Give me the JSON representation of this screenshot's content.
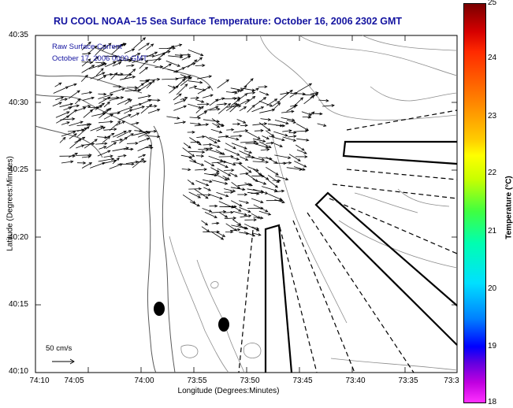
{
  "header": {
    "title": "RU COOL  NOAA–15  Sea Surface Temperature:  October 16, 2006 2302 GMT"
  },
  "legend": {
    "line1": "Raw Surface Current",
    "line2": "October 17, 2006 0000 GMT",
    "scale_label": "50 cm/s"
  },
  "axes": {
    "ylabel": "Latitude (Degrees:Minutes)",
    "xlabel": "Longitude (Degrees:Minutes)",
    "yticks": [
      "40:35",
      "40:30",
      "40:25",
      "40:20",
      "40:15",
      "40:10"
    ],
    "xticks": [
      "74:10",
      "74:05",
      "74:00",
      "73:55",
      "73:50",
      "73:45",
      "73:40",
      "73:35",
      "73:3"
    ]
  },
  "colorbar": {
    "label": "Temperature (°C)",
    "ticks": [
      "25",
      "24",
      "23",
      "22",
      "21",
      "20",
      "19",
      "18"
    ],
    "colors": [
      "#7a0000",
      "#ff0000",
      "#ffff00",
      "#00ff80",
      "#00e0ff",
      "#0000ff",
      "#ff30ff"
    ]
  },
  "chart_data": {
    "type": "map",
    "title": "RU COOL  NOAA–15  Sea Surface Temperature:  October 16, 2006 2302 GMT",
    "xlabel": "Longitude (Degrees:Minutes)",
    "ylabel": "Latitude (Degrees:Minutes)",
    "xlim": [
      "74:10",
      "73:30"
    ],
    "ylim": [
      "40:10",
      "40:35"
    ],
    "colorbar_range_celsius": [
      18,
      25
    ],
    "vector_field": "raw surface current",
    "vector_scale": "50 cm/s",
    "features": [
      "coastline",
      "bathymetry contours",
      "shipping lanes (dashed)",
      "two black dots"
    ]
  }
}
